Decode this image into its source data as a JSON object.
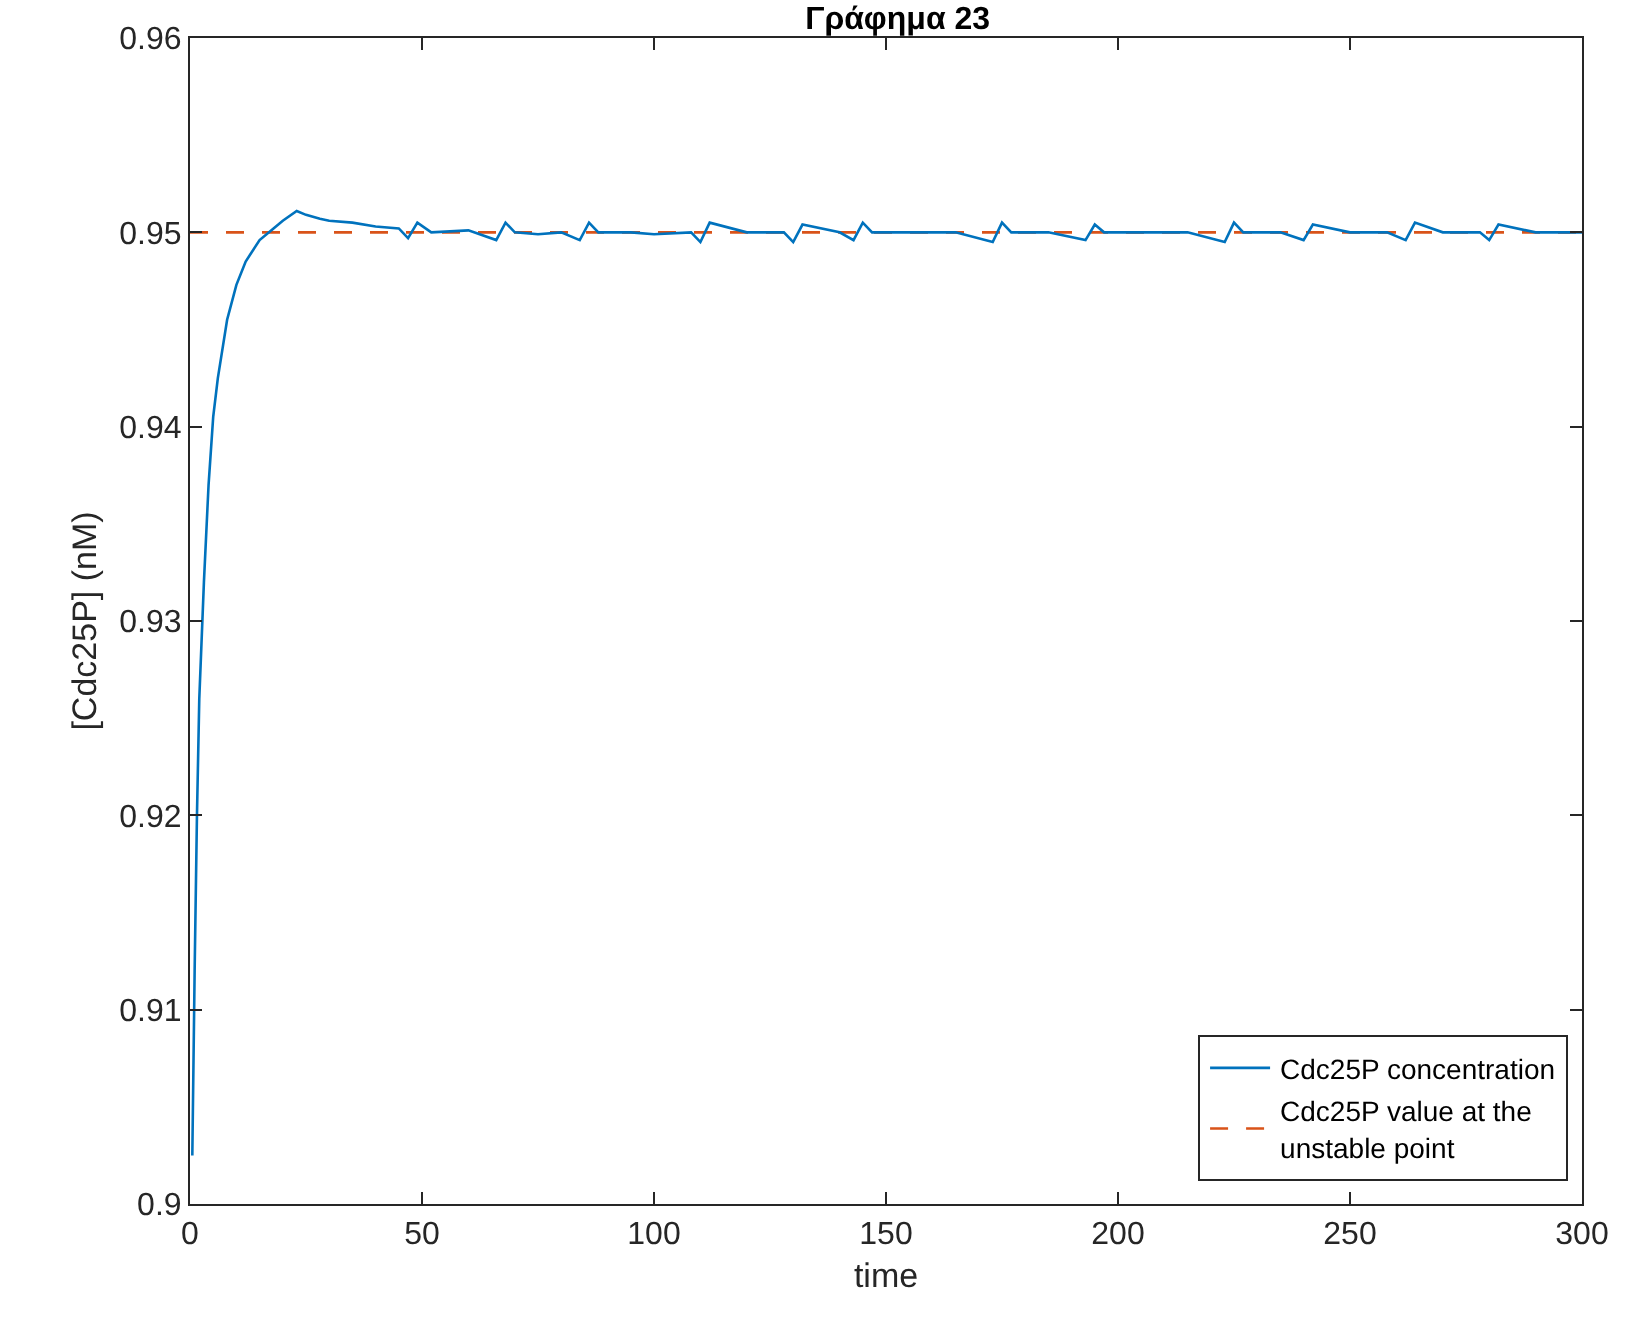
{
  "chart_data": {
    "type": "line",
    "title": "Γράφημα 23",
    "xlabel": "time",
    "ylabel": "[Cdc25P] (nM)",
    "series": [
      {
        "name": "Cdc25P concentration",
        "color": "#0072bd",
        "x": [
          0.5,
          1,
          1.5,
          2,
          3,
          4,
          5,
          6,
          8,
          10,
          12,
          15,
          18,
          20,
          23,
          25,
          28,
          30,
          35,
          40,
          45,
          47,
          49,
          52,
          60,
          66,
          68,
          70,
          75,
          80,
          84,
          86,
          88,
          95,
          100,
          108,
          110,
          112,
          120,
          128,
          130,
          132,
          140,
          143,
          145,
          147,
          155,
          165,
          173,
          175,
          177,
          185,
          193,
          195,
          197,
          205,
          215,
          223,
          225,
          227,
          235,
          240,
          242,
          250,
          258,
          262,
          264,
          270,
          278,
          280,
          282,
          290,
          300
        ],
        "values": [
          0.9025,
          0.912,
          0.92,
          0.926,
          0.932,
          0.937,
          0.9405,
          0.9425,
          0.9455,
          0.9473,
          0.9485,
          0.9496,
          0.9502,
          0.9506,
          0.9511,
          0.9509,
          0.9507,
          0.9506,
          0.9505,
          0.9503,
          0.9502,
          0.9497,
          0.9505,
          0.95,
          0.9501,
          0.9496,
          0.9505,
          0.95,
          0.9499,
          0.95,
          0.9496,
          0.9505,
          0.95,
          0.95,
          0.9499,
          0.95,
          0.9495,
          0.9505,
          0.95,
          0.95,
          0.9495,
          0.9504,
          0.95,
          0.9496,
          0.9505,
          0.95,
          0.95,
          0.95,
          0.9495,
          0.9505,
          0.95,
          0.95,
          0.9496,
          0.9504,
          0.95,
          0.95,
          0.95,
          0.9495,
          0.9505,
          0.95,
          0.95,
          0.9496,
          0.9504,
          0.95,
          0.95,
          0.9496,
          0.9505,
          0.95,
          0.95,
          0.9496,
          0.9504,
          0.95,
          0.95
        ]
      }
    ],
    "ref_lines": [
      {
        "axis": "y",
        "value": 0.95,
        "label": "Cdc25P value at the unstable point",
        "color": "#d95319",
        "line_style": "dashed"
      }
    ],
    "xlim": [
      0,
      300
    ],
    "xticks": [
      0,
      50,
      100,
      150,
      200,
      250,
      300
    ],
    "ylim": [
      0.9,
      0.96
    ],
    "yticks": [
      0.9,
      0.91,
      0.92,
      0.93,
      0.94,
      0.95,
      0.96
    ],
    "legend": "bottom right",
    "grid": false
  }
}
